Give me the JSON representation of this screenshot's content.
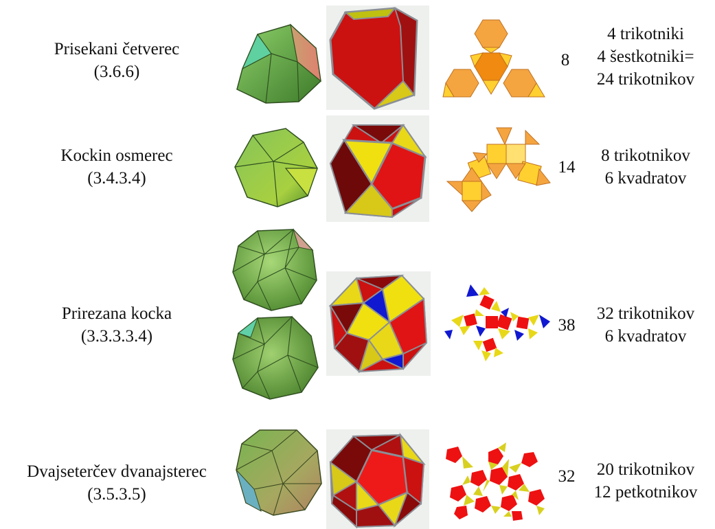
{
  "solids": [
    {
      "name": "Prisekani četverec",
      "notation": "(3.6.6)",
      "faces": "8",
      "description": [
        "4 trikotniki",
        "4 šestkotniki=",
        "24 trikotnikov"
      ]
    },
    {
      "name": "Kockin osmerec",
      "notation": "(3.4.3.4)",
      "faces": "14",
      "description": [
        "8 trikotnikov",
        "6 kvadratov"
      ]
    },
    {
      "name": "Prirezana kocka",
      "notation": "(3.3.3.3.4)",
      "faces": "38",
      "description": [
        "32 trikotnikov",
        "6 kvadratov"
      ]
    },
    {
      "name": "Dvajseterčev dvanajsterec",
      "notation": "(3.5.3.5)",
      "faces": "32",
      "description": [
        "20 trikotnikov",
        "12 petkotnikov"
      ]
    }
  ],
  "colors": {
    "green_solid": "#7bb24a",
    "green_dark": "#3e6d24",
    "red_face": "#cc1111",
    "dark_red_face": "#7a0a0a",
    "yellow_face": "#f0e010",
    "blue_face": "#1018d0",
    "orange_hex": "#f5a540",
    "orange_dark": "#f08a10",
    "yellow_net": "#ffd030",
    "edge_gray": "#8a8f96"
  }
}
